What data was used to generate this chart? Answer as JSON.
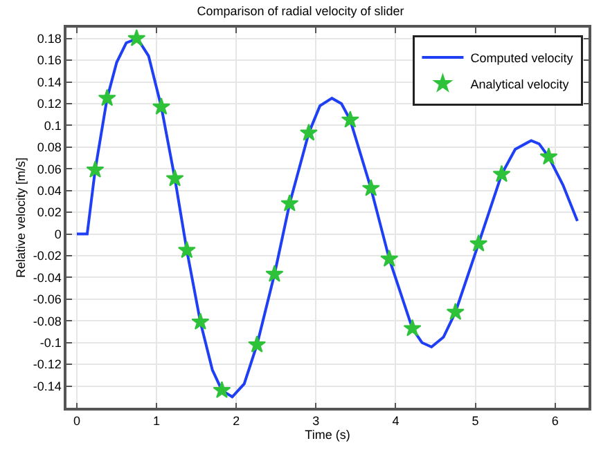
{
  "chart_data": {
    "type": "line",
    "title": "Comparison of radial velocity of slider",
    "xlabel": "Time (s)",
    "ylabel": "Relative velocity [m/s]",
    "xlim": [
      -0.13,
      6.42
    ],
    "xticks": [
      0,
      1,
      2,
      3,
      4,
      5,
      6
    ],
    "ylim": [
      -0.16,
      0.19
    ],
    "yticks": [
      -0.14,
      -0.12,
      -0.1,
      -0.08,
      -0.06,
      -0.04,
      -0.02,
      0,
      0.02,
      0.04,
      0.06,
      0.08,
      0.1,
      0.12,
      0.14,
      0.16,
      0.18
    ],
    "grid": true,
    "legend": "top right",
    "series": [
      {
        "name": "Computed velocity",
        "color": "#1f3ff5",
        "marker": "none",
        "line_style": "solid",
        "x": [
          0,
          0.13,
          0.23,
          0.38,
          0.5,
          0.62,
          0.76,
          0.9,
          1.06,
          1.23,
          1.38,
          1.55,
          1.7,
          1.82,
          1.95,
          2.1,
          2.26,
          2.48,
          2.67,
          2.91,
          3.05,
          3.2,
          3.32,
          3.43,
          3.69,
          3.92,
          4.21,
          4.33,
          4.45,
          4.6,
          4.75,
          5.04,
          5.33,
          5.5,
          5.7,
          5.8,
          5.92,
          6.1,
          6.28
        ],
        "values": [
          0,
          0,
          0.059,
          0.125,
          0.158,
          0.176,
          0.18,
          0.164,
          0.117,
          0.051,
          -0.015,
          -0.081,
          -0.125,
          -0.144,
          -0.15,
          -0.138,
          -0.102,
          -0.037,
          0.028,
          0.093,
          0.118,
          0.125,
          0.12,
          0.105,
          0.042,
          -0.023,
          -0.087,
          -0.1,
          -0.104,
          -0.095,
          -0.072,
          -0.009,
          0.055,
          0.078,
          0.086,
          0.083,
          0.071,
          0.045,
          0.012
        ]
      },
      {
        "name": "Analytical velocity",
        "type": "scatter",
        "color": "#2ec23a",
        "marker": "star",
        "x": [
          0.23,
          0.38,
          0.75,
          1.06,
          1.23,
          1.38,
          1.55,
          1.82,
          2.26,
          2.48,
          2.67,
          2.91,
          3.43,
          3.69,
          3.92,
          4.21,
          4.75,
          5.04,
          5.33,
          5.92
        ],
        "values": [
          0.059,
          0.125,
          0.18,
          0.117,
          0.051,
          -0.015,
          -0.081,
          -0.144,
          -0.102,
          -0.037,
          0.028,
          0.093,
          0.105,
          0.042,
          -0.023,
          -0.087,
          -0.072,
          -0.009,
          0.055,
          0.071
        ]
      }
    ]
  }
}
